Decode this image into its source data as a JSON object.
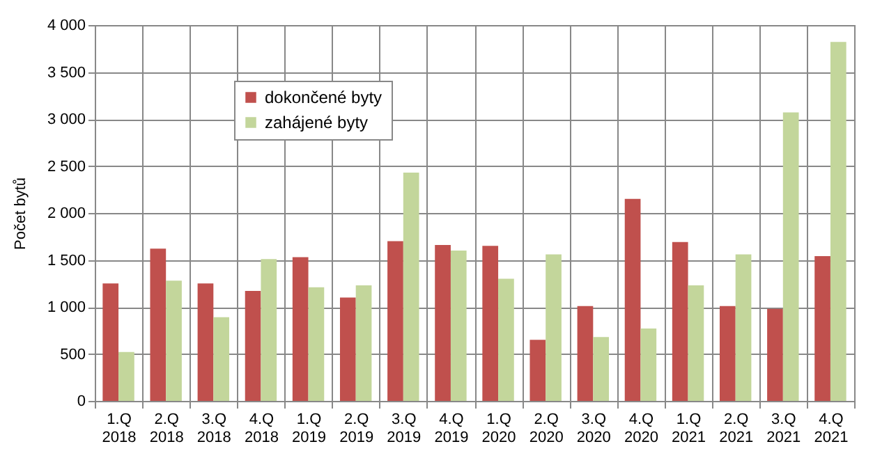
{
  "chart_data": {
    "type": "bar",
    "ylabel": "Počet bytů",
    "categories": [
      "1.Q 2018",
      "2.Q 2018",
      "3.Q 2018",
      "4.Q 2018",
      "1.Q 2019",
      "2.Q 2019",
      "3.Q 2019",
      "4.Q 2019",
      "1.Q 2020",
      "2.Q 2020",
      "3.Q 2020",
      "4.Q 2020",
      "1.Q 2021",
      "2.Q 2021",
      "3.Q 2021",
      "4.Q 2021"
    ],
    "series": [
      {
        "name": "dokončené byty",
        "color": "#c0504d",
        "values": [
          1250,
          1620,
          1250,
          1170,
          1530,
          1100,
          1700,
          1660,
          1650,
          650,
          1010,
          2150,
          1690,
          1010,
          980,
          1540
        ]
      },
      {
        "name": "zahájené byty",
        "color": "#c3d69b",
        "values": [
          520,
          1280,
          890,
          1510,
          1210,
          1230,
          2430,
          1600,
          1300,
          1560,
          680,
          770,
          1230,
          1560,
          3070,
          3820
        ]
      }
    ],
    "ylim": [
      0,
      4000
    ],
    "yticks": [
      0,
      500,
      {
        "value": 1000,
        "label": "1 000"
      },
      {
        "value": 1500,
        "label": "1 500"
      },
      {
        "value": 2000,
        "label": "2 000"
      },
      {
        "value": 2500,
        "label": "2 500"
      },
      {
        "value": 3000,
        "label": "3 000"
      },
      {
        "value": 3500,
        "label": "3 500"
      },
      {
        "value": 4000,
        "label": "4 000"
      }
    ],
    "grid": true,
    "legend": "top left"
  }
}
